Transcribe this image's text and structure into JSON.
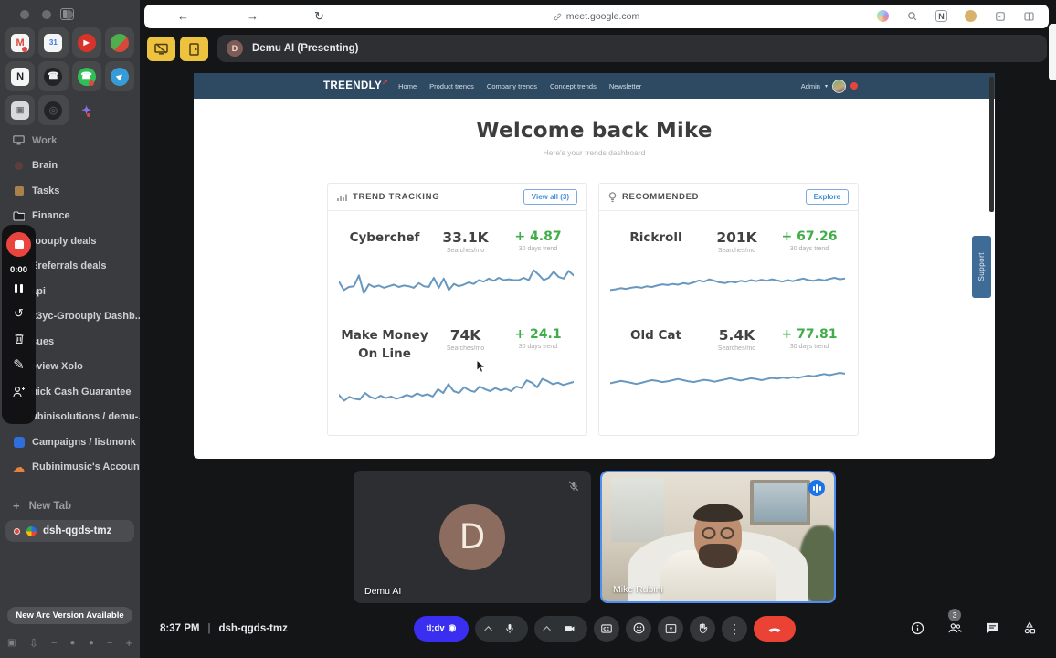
{
  "colors": {
    "navbar_blue": "#2e4a63",
    "sparkline_blue": "#6898bf",
    "accent_blue": "#4a8fd4",
    "trend_green": "#3fae49",
    "tldv_blue": "#3a2ff0",
    "end_call_red": "#ea4335",
    "speaking_border_blue": "#4e8df6",
    "presenting_yellow": "#edc23f",
    "record_red": "#e9453e"
  },
  "browser": {
    "url": "meet.google.com"
  },
  "sidebar": {
    "apps": [
      {
        "name": "gmail",
        "glyph": "M"
      },
      {
        "name": "calendar",
        "glyph": "31"
      },
      {
        "name": "music",
        "glyph": "▶"
      },
      {
        "name": "feather",
        "glyph": ""
      },
      {
        "name": "notion",
        "glyph": "N"
      },
      {
        "name": "dialer",
        "glyph": "☎"
      },
      {
        "name": "whatsapp",
        "glyph": "☎"
      },
      {
        "name": "telegram",
        "glyph": "▶"
      },
      {
        "name": "box-app",
        "glyph": "▣"
      },
      {
        "name": "dark-app",
        "glyph": "◎"
      },
      {
        "name": "sparkle-app",
        "glyph": "✦"
      }
    ],
    "items": [
      {
        "label": "Work"
      },
      {
        "label": "Brain"
      },
      {
        "label": "Tasks"
      },
      {
        "label": "Finance"
      },
      {
        "label": "roouply deals"
      },
      {
        "label": "Ereferrals deals"
      },
      {
        "label": "api"
      },
      {
        "label": "23yc-Groouply Dashb..."
      },
      {
        "label": "sues"
      },
      {
        "label": "eview Xolo"
      },
      {
        "label": "uick Cash Guarantee"
      },
      {
        "label": "ubinisolutions / demu-..."
      },
      {
        "label": "Campaigns / listmonk"
      },
      {
        "label": "Rubinimusic's Account"
      }
    ],
    "recorder": {
      "time": "0:00"
    },
    "new_tab_label": "New Tab",
    "active_tab_label": "dsh-qgds-tmz",
    "update_button_label": "New Arc Version Available"
  },
  "meet": {
    "presenting_label": "Demu AI (Presenting)",
    "presenter_initial": "D",
    "time": "8:37 PM",
    "separator": "|",
    "meeting_code": "dsh-qgds-tmz",
    "tldv_label": "tl;dv",
    "record_glyph": "◉",
    "participants_badge": "3",
    "tiles": [
      {
        "name": "Demu AI",
        "initial": "D",
        "muted": true
      },
      {
        "name": "Mike Rubini",
        "speaking": true
      }
    ]
  },
  "site": {
    "brand": "TREENDLY",
    "nav": [
      "Home",
      "Product trends",
      "Company trends",
      "Concept trends",
      "Newsletter"
    ],
    "admin_label": "Admin",
    "heading": "Welcome back Mike",
    "subheading": "Here's your trends dashboard",
    "support_tab": "Support",
    "cards": [
      {
        "title": "TREND TRACKING",
        "button_label": "View all (3)",
        "items": [
          {
            "name": "Cyberchef",
            "value": "33.1K",
            "unit": "Searches/mo",
            "change": "+ 4.87",
            "change_label": "30 days trend",
            "spark": [
              52,
              30,
              38,
              40,
              68,
              22,
              45,
              38,
              42,
              36,
              40,
              44,
              38,
              42,
              40,
              36,
              48,
              40,
              38,
              62,
              36,
              60,
              30,
              46,
              40,
              44,
              50,
              46,
              56,
              52,
              60,
              54,
              62,
              56,
              58,
              56,
              56,
              62,
              56,
              82,
              70,
              56,
              62,
              78,
              64,
              60,
              80,
              68
            ]
          },
          {
            "name": "Make Money On Line",
            "value": "74K",
            "unit": "Searches/mo",
            "change": "+ 24.1",
            "change_label": "30 days trend",
            "spark": [
              40,
              25,
              35,
              30,
              28,
              45,
              35,
              30,
              38,
              32,
              36,
              30,
              34,
              40,
              36,
              44,
              38,
              42,
              36,
              55,
              45,
              68,
              50,
              45,
              60,
              52,
              48,
              62,
              55,
              50,
              58,
              52,
              56,
              50,
              62,
              58,
              78,
              72,
              60,
              82,
              76,
              68,
              72,
              66,
              70,
              74
            ]
          }
        ]
      },
      {
        "title": "RECOMMENDED",
        "button_label": "Explore",
        "items": [
          {
            "name": "Rickroll",
            "value": "201K",
            "unit": "Searches/mo",
            "change": "+ 67.26",
            "change_label": "30 days trend",
            "spark": [
              30,
              32,
              35,
              33,
              36,
              38,
              36,
              40,
              38,
              42,
              45,
              43,
              46,
              44,
              48,
              46,
              50,
              55,
              52,
              58,
              54,
              50,
              48,
              52,
              50,
              54,
              52,
              56,
              53,
              57,
              54,
              58,
              55,
              52,
              56,
              53,
              57,
              60,
              56,
              54,
              58,
              55,
              59,
              62,
              58,
              60
            ]
          },
          {
            "name": "Old Cat",
            "value": "5.4K",
            "unit": "Searches/mo",
            "change": "+ 77.81",
            "change_label": "30 days trend",
            "spark": [
              42,
              45,
              48,
              46,
              43,
              40,
              43,
              47,
              50,
              48,
              45,
              47,
              50,
              53,
              50,
              47,
              45,
              48,
              51,
              49,
              46,
              49,
              52,
              55,
              52,
              49,
              52,
              55,
              53,
              50,
              53,
              56,
              54,
              57,
              55,
              58,
              56,
              59,
              62,
              60,
              63,
              66,
              63,
              66,
              69,
              67
            ]
          }
        ]
      }
    ]
  }
}
